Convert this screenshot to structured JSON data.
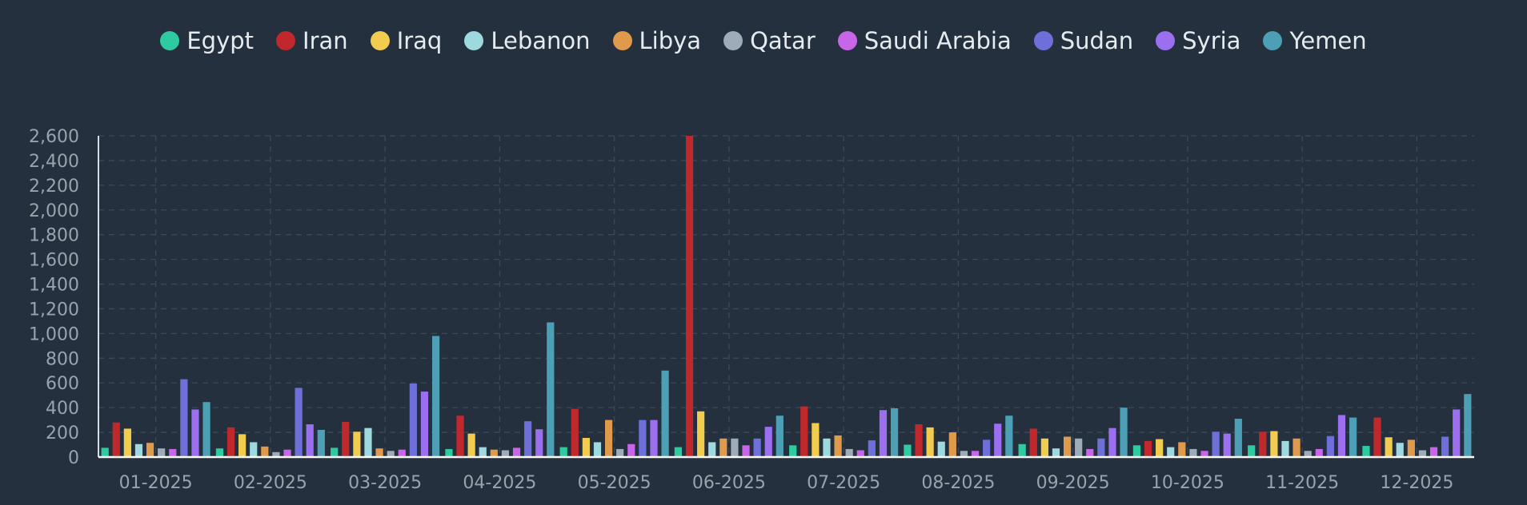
{
  "chart_data": {
    "type": "bar",
    "title": "",
    "xlabel": "",
    "ylabel": "",
    "ylim": [
      0,
      2600
    ],
    "yticks": [
      "0",
      "200",
      "400",
      "600",
      "800",
      "1,000",
      "1,200",
      "1,400",
      "1,600",
      "1,800",
      "2,000",
      "2,200",
      "2,400",
      "2,600"
    ],
    "ytick_values": [
      0,
      200,
      400,
      600,
      800,
      1000,
      1200,
      1400,
      1600,
      1800,
      2000,
      2200,
      2400,
      2600
    ],
    "grid": true,
    "legend_position": "top-center",
    "categories": [
      "01-2025",
      "02-2025",
      "03-2025",
      "04-2025",
      "05-2025",
      "06-2025",
      "07-2025",
      "08-2025",
      "09-2025",
      "10-2025",
      "11-2025",
      "12-2025"
    ],
    "series": [
      {
        "name": "Egypt",
        "color": "#2ecba0",
        "values": [
          75,
          70,
          75,
          65,
          80,
          80,
          95,
          100,
          105,
          95,
          95,
          90
        ]
      },
      {
        "name": "Iran",
        "color": "#c0282c",
        "values": [
          280,
          240,
          285,
          335,
          390,
          2600,
          410,
          265,
          230,
          130,
          205,
          320
        ]
      },
      {
        "name": "Iraq",
        "color": "#f2cc4f",
        "values": [
          230,
          185,
          205,
          190,
          155,
          370,
          275,
          240,
          150,
          145,
          210,
          160
        ]
      },
      {
        "name": "Lebanon",
        "color": "#9fd9e0",
        "values": [
          105,
          120,
          235,
          80,
          120,
          120,
          150,
          125,
          70,
          80,
          130,
          115
        ]
      },
      {
        "name": "Libya",
        "color": "#e09a4c",
        "values": [
          115,
          85,
          70,
          60,
          300,
          150,
          175,
          200,
          165,
          120,
          150,
          140
        ]
      },
      {
        "name": "Qatar",
        "color": "#9eabb8",
        "values": [
          70,
          40,
          50,
          55,
          65,
          150,
          65,
          50,
          150,
          65,
          50,
          55
        ]
      },
      {
        "name": "Saudi Arabia",
        "color": "#c865e8",
        "values": [
          65,
          60,
          60,
          75,
          105,
          95,
          55,
          50,
          65,
          50,
          65,
          80
        ]
      },
      {
        "name": "Sudan",
        "color": "#6e6fd8",
        "values": [
          630,
          560,
          595,
          290,
          300,
          150,
          135,
          140,
          150,
          205,
          170,
          165
        ]
      },
      {
        "name": "Syria",
        "color": "#9b6ff0",
        "values": [
          385,
          265,
          530,
          225,
          300,
          245,
          380,
          270,
          235,
          190,
          340,
          385
        ]
      },
      {
        "name": "Yemen",
        "color": "#4d9fb5",
        "values": [
          445,
          220,
          980,
          1090,
          700,
          335,
          395,
          335,
          400,
          310,
          320,
          510
        ]
      }
    ]
  }
}
